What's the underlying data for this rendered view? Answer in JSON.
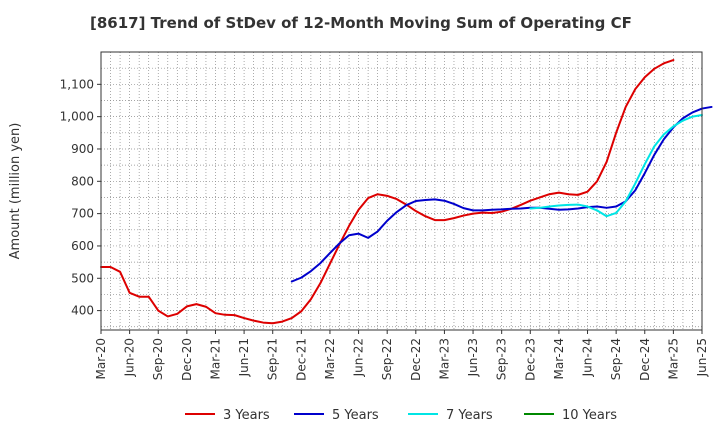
{
  "chart_data": {
    "type": "line",
    "title": "[8617]  Trend of StDev of 12-Month Moving Sum of Operating CF",
    "ylabel": "Amount (million yen)",
    "xlabel": "",
    "ylim": [
      340,
      1200
    ],
    "yticks": [
      400,
      500,
      600,
      700,
      800,
      900,
      1000,
      1100
    ],
    "ytick_labels": [
      "400",
      "500",
      "600",
      "700",
      "800",
      "900",
      "1,000",
      "1,100"
    ],
    "xlim": [
      "Mar-20",
      "Mar-25"
    ],
    "xtick_labels": [
      "Mar-20",
      "Jun-20",
      "Sep-20",
      "Dec-20",
      "Mar-21",
      "Jun-21",
      "Sep-21",
      "Dec-21",
      "Mar-22",
      "Jun-22",
      "Sep-22",
      "Dec-22",
      "Mar-23",
      "Jun-23",
      "Sep-23",
      "Dec-23",
      "Mar-24",
      "Jun-24",
      "Sep-24",
      "Dec-24",
      "Mar-25",
      "Jun-25"
    ],
    "grid": true,
    "legend_position": "bottom",
    "series": [
      {
        "name": "3 Years",
        "color": "#dd0000",
        "start": "Mar-20",
        "values": [
          535,
          535,
          520,
          455,
          443,
          443,
          400,
          382,
          390,
          413,
          420,
          412,
          392,
          387,
          386,
          377,
          369,
          363,
          361,
          366,
          377,
          398,
          435,
          485,
          545,
          605,
          662,
          712,
          748,
          760,
          755,
          745,
          728,
          708,
          692,
          680,
          680,
          686,
          694,
          700,
          703,
          702,
          706,
          715,
          727,
          740,
          750,
          760,
          765,
          760,
          758,
          768,
          800,
          860,
          950,
          1030,
          1085,
          1122,
          1148,
          1165,
          1175
        ]
      },
      {
        "name": "5 Years",
        "color": "#0000cc",
        "start": "Nov-21",
        "values": [
          490,
          502,
          522,
          547,
          578,
          608,
          633,
          638,
          625,
          645,
          678,
          705,
          726,
          739,
          742,
          744,
          740,
          730,
          717,
          710,
          710,
          712,
          713,
          715,
          716,
          718,
          718,
          715,
          712,
          713,
          716,
          720,
          722,
          718,
          722,
          738,
          772,
          825,
          882,
          930,
          967,
          995,
          1013,
          1025,
          1030
        ]
      },
      {
        "name": "7 Years",
        "color": "#00e5e5",
        "start": "Dec-23",
        "values": [
          716,
          718,
          722,
          725,
          727,
          728,
          722,
          710,
          692,
          702,
          738,
          793,
          853,
          908,
          945,
          970,
          988,
          1000,
          1005
        ]
      },
      {
        "name": "10 Years",
        "color": "#008800",
        "start": "",
        "values": []
      }
    ]
  }
}
